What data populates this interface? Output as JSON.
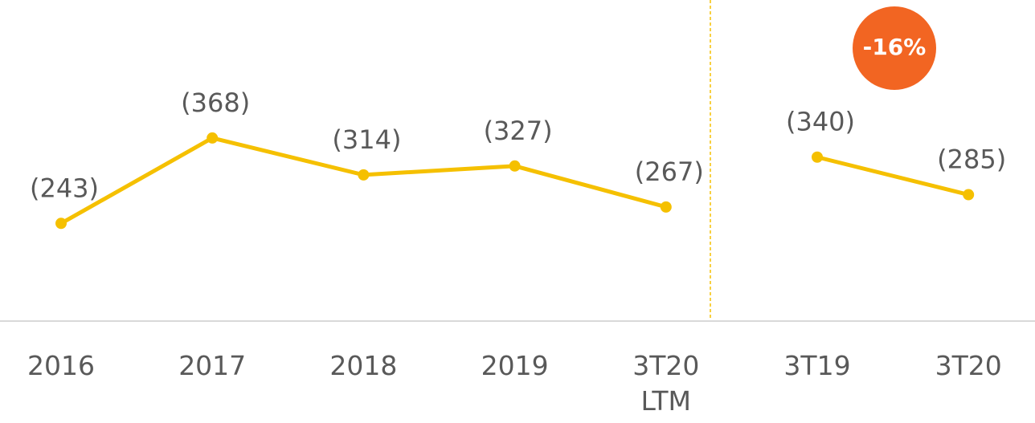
{
  "chart_data": {
    "type": "line",
    "categories": [
      "2016",
      "2017",
      "2018",
      "2019",
      "3T20\nLTM",
      "3T19",
      "3T20"
    ],
    "series": [
      {
        "color": "#f5c000",
        "values": [
          243,
          368,
          314,
          327,
          267,
          null,
          null
        ],
        "value_labels": [
          "(243)",
          "(368)",
          "(314)",
          "(327)",
          "(267)",
          null,
          null
        ]
      },
      {
        "color": "#f5c000",
        "values": [
          null,
          null,
          null,
          null,
          null,
          340,
          285
        ],
        "value_labels": [
          null,
          null,
          null,
          null,
          null,
          "(340)",
          "(285)"
        ]
      }
    ],
    "ylim": [
      100,
      570
    ],
    "annotations": [
      {
        "text": "-16%",
        "color": "#f26522"
      }
    ]
  }
}
